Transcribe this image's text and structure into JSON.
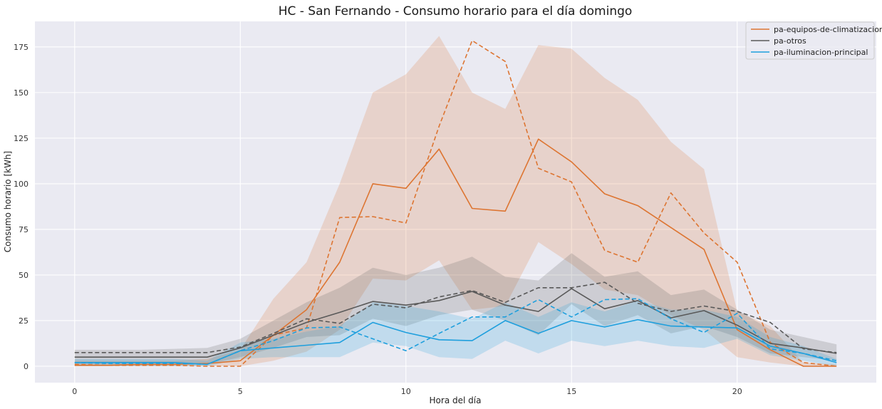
{
  "chart_data": {
    "type": "line",
    "title": "HC - San Fernando - Consumo horario para el día domingo",
    "xlabel": "Hora del día",
    "ylabel": "Consumo horario [kWh]",
    "xlim": [
      -1.2,
      24.2
    ],
    "ylim": [
      -9,
      189
    ],
    "xticks": [
      0,
      5,
      10,
      15,
      20
    ],
    "yticks": [
      0,
      25,
      50,
      75,
      100,
      125,
      150,
      175
    ],
    "grid": true,
    "legend_position": "top-right",
    "x": [
      0,
      1,
      2,
      3,
      4,
      5,
      6,
      7,
      8,
      9,
      10,
      11,
      12,
      13,
      14,
      15,
      16,
      17,
      18,
      19,
      20,
      21,
      22,
      23
    ],
    "series": [
      {
        "name": "pa-equipos-de-climatizacion",
        "color": "#dd7532",
        "mean": [
          0.5,
          0.5,
          1,
          1,
          1.5,
          3,
          17,
          31,
          57,
          100,
          97.5,
          119,
          86.5,
          85,
          124.5,
          112,
          94.5,
          88,
          76,
          64,
          20,
          9,
          0,
          0
        ],
        "dashed": [
          1,
          0.5,
          0.5,
          0.5,
          0,
          0,
          17,
          21,
          81.5,
          82,
          78.5,
          131.5,
          178.5,
          167,
          108.5,
          101,
          63.5,
          57,
          95,
          73,
          57,
          13,
          2,
          0
        ],
        "band_low": [
          0,
          0,
          0,
          0,
          0,
          0,
          3,
          8,
          20,
          48,
          47,
          58,
          31,
          33,
          68,
          56,
          42,
          39,
          28,
          20,
          5,
          2,
          0,
          0
        ],
        "band_high": [
          3,
          3,
          3,
          3,
          4,
          9,
          37,
          57,
          100,
          150,
          160,
          181,
          150,
          141,
          176,
          174,
          158,
          146,
          123,
          108,
          30,
          22,
          2,
          1
        ]
      },
      {
        "name": "pa-otros",
        "color": "#595959",
        "mean": [
          5,
          5,
          5,
          5,
          5,
          10,
          17,
          24,
          29.5,
          35.5,
          33.5,
          36,
          41,
          33.5,
          30,
          42.5,
          31.5,
          36,
          26.5,
          30.5,
          22.5,
          12.5,
          10,
          7
        ],
        "dashed": [
          7.5,
          7.5,
          7.5,
          7.5,
          7.5,
          10.5,
          18,
          26,
          23.5,
          34,
          32,
          38,
          41.5,
          35,
          43,
          43,
          46,
          34.5,
          30,
          33,
          30,
          24,
          9.5,
          7.5
        ],
        "band_low": [
          1,
          1,
          1,
          1,
          1,
          5,
          10,
          16,
          17,
          26,
          22,
          28,
          31,
          25,
          17,
          34,
          22,
          28,
          18,
          22,
          16,
          7,
          5,
          3
        ],
        "band_high": [
          9,
          9,
          9,
          9.5,
          10,
          15,
          25,
          35,
          43,
          54,
          50,
          54,
          60,
          49,
          47,
          62,
          49,
          52,
          39,
          42,
          31,
          20,
          16,
          12
        ]
      },
      {
        "name": "pa-iluminacion-principal",
        "color": "#1e9fdd",
        "mean": [
          2,
          2,
          2,
          2,
          1,
          8.5,
          10,
          11.5,
          13,
          24,
          18.5,
          14.5,
          14,
          25,
          18,
          25,
          21.5,
          25.5,
          22,
          21.5,
          21,
          11,
          7,
          2
        ],
        "dashed": [
          2,
          1.5,
          1.5,
          1.5,
          1,
          8.5,
          14,
          21,
          21.5,
          15,
          8.5,
          18,
          27,
          27,
          36.5,
          27,
          36.5,
          37,
          26,
          18.5,
          29,
          9.5,
          7,
          3
        ],
        "band_low": [
          0,
          0,
          0,
          0,
          0,
          4,
          5,
          5,
          5,
          13,
          11,
          5,
          4,
          14,
          7,
          14,
          11,
          14,
          11,
          10,
          15,
          6,
          3,
          0
        ],
        "band_high": [
          4,
          4,
          4,
          4,
          3,
          13,
          15,
          19,
          22,
          35,
          33,
          30,
          26,
          35,
          27,
          35,
          30,
          36,
          31,
          31,
          27,
          16,
          11,
          4
        ]
      }
    ]
  }
}
